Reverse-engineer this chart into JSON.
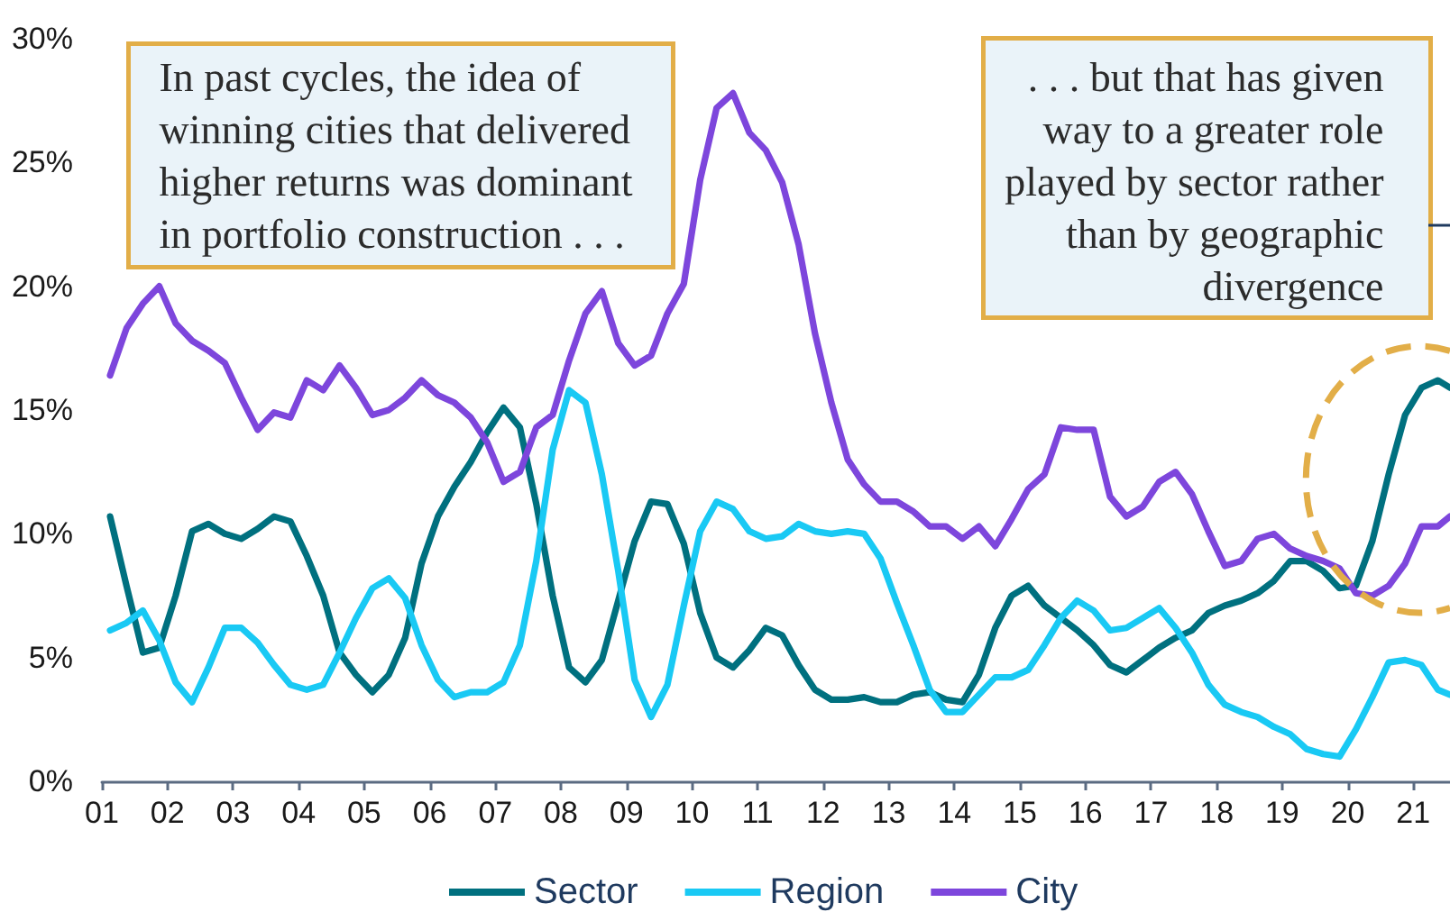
{
  "chart_data": {
    "type": "line",
    "annotations": [
      "In past cycles, the idea of\nwinning cities that delivered\nhigher returns was dominant\nin portfolio construction . . .",
      ". . . but that has given\nway to a greater role\nplayed by sector rather\nthan by geographic\ndivergence"
    ],
    "x": [
      2001.125,
      2001.375,
      2001.625,
      2001.875,
      2002.125,
      2002.375,
      2002.625,
      2002.875,
      2003.125,
      2003.375,
      2003.625,
      2003.875,
      2004.125,
      2004.375,
      2004.625,
      2004.875,
      2005.125,
      2005.375,
      2005.625,
      2005.875,
      2006.125,
      2006.375,
      2006.625,
      2006.875,
      2007.125,
      2007.375,
      2007.625,
      2007.875,
      2008.125,
      2008.375,
      2008.625,
      2008.875,
      2009.125,
      2009.375,
      2009.625,
      2009.875,
      2010.125,
      2010.375,
      2010.625,
      2010.875,
      2011.125,
      2011.375,
      2011.625,
      2011.875,
      2012.125,
      2012.375,
      2012.625,
      2012.875,
      2013.125,
      2013.375,
      2013.625,
      2013.875,
      2014.125,
      2014.375,
      2014.625,
      2014.875,
      2015.125,
      2015.375,
      2015.625,
      2015.875,
      2016.125,
      2016.375,
      2016.625,
      2016.875,
      2017.125,
      2017.375,
      2017.625,
      2017.875,
      2018.125,
      2018.375,
      2018.625,
      2018.875,
      2019.125,
      2019.375,
      2019.625,
      2019.875,
      2020.125,
      2020.375,
      2020.625,
      2020.875,
      2021.125,
      2021.375,
      2021.56
    ],
    "series": [
      {
        "name": "Sector",
        "color": "#00707f",
        "values": [
          10.7,
          7.9,
          5.2,
          5.4,
          7.5,
          10.1,
          10.4,
          10.0,
          9.8,
          10.2,
          10.7,
          10.5,
          9.1,
          7.5,
          5.2,
          4.3,
          3.6,
          4.3,
          5.8,
          8.8,
          10.7,
          11.9,
          12.9,
          14.1,
          15.1,
          14.3,
          11.2,
          7.5,
          4.6,
          4.0,
          4.9,
          7.3,
          9.7,
          11.3,
          11.2,
          9.6,
          6.8,
          5.0,
          4.6,
          5.3,
          6.2,
          5.9,
          4.7,
          3.7,
          3.3,
          3.3,
          3.4,
          3.2,
          3.2,
          3.5,
          3.6,
          3.3,
          3.2,
          4.3,
          6.2,
          7.5,
          7.9,
          7.1,
          6.6,
          6.1,
          5.5,
          4.7,
          4.4,
          4.9,
          5.4,
          5.8,
          6.1,
          6.8,
          7.1,
          7.3,
          7.6,
          8.1,
          8.9,
          8.9,
          8.5,
          7.8,
          7.9,
          9.7,
          12.4,
          14.8,
          15.9,
          16.2,
          15.9
        ]
      },
      {
        "name": "Region",
        "color": "#19c9f4",
        "values": [
          6.1,
          6.4,
          6.9,
          5.7,
          4.0,
          3.2,
          4.6,
          6.2,
          6.2,
          5.6,
          4.7,
          3.9,
          3.7,
          3.9,
          5.2,
          6.6,
          7.8,
          8.2,
          7.4,
          5.5,
          4.1,
          3.4,
          3.6,
          3.6,
          4.0,
          5.5,
          8.9,
          13.4,
          15.8,
          15.3,
          12.4,
          8.5,
          4.1,
          2.6,
          3.9,
          7.1,
          10.1,
          11.3,
          11.0,
          10.1,
          9.8,
          9.9,
          10.4,
          10.1,
          10.0,
          10.1,
          10.0,
          9.0,
          7.2,
          5.5,
          3.7,
          2.8,
          2.8,
          3.5,
          4.2,
          4.2,
          4.5,
          5.5,
          6.6,
          7.3,
          6.9,
          6.1,
          6.2,
          6.6,
          7.0,
          6.2,
          5.2,
          3.9,
          3.1,
          2.8,
          2.6,
          2.2,
          1.9,
          1.3,
          1.1,
          1.0,
          2.1,
          3.4,
          4.8,
          4.9,
          4.7,
          3.7,
          3.5
        ]
      },
      {
        "name": "City",
        "color": "#7d46dc",
        "values": [
          16.4,
          18.3,
          19.3,
          20.0,
          18.5,
          17.8,
          17.4,
          16.9,
          15.5,
          14.2,
          14.9,
          14.7,
          16.2,
          15.8,
          16.8,
          15.9,
          14.8,
          15.0,
          15.5,
          16.2,
          15.6,
          15.3,
          14.7,
          13.7,
          12.1,
          12.5,
          14.3,
          14.8,
          17.0,
          18.9,
          19.8,
          17.7,
          16.8,
          17.2,
          18.9,
          20.1,
          24.3,
          27.2,
          27.8,
          26.2,
          25.5,
          24.2,
          21.7,
          18.1,
          15.3,
          13.0,
          12.0,
          11.3,
          11.3,
          10.9,
          10.3,
          10.3,
          9.8,
          10.3,
          9.5,
          10.6,
          11.8,
          12.4,
          14.3,
          14.2,
          14.2,
          11.5,
          10.7,
          11.1,
          12.1,
          12.5,
          11.6,
          10.1,
          8.7,
          8.9,
          9.8,
          10.0,
          9.4,
          9.1,
          8.9,
          8.6,
          7.6,
          7.5,
          7.9,
          8.8,
          10.3,
          10.3,
          10.7
        ]
      }
    ],
    "xlim": [
      2001,
      2021.56
    ],
    "xticks": [
      {
        "value": 2001,
        "label": "01"
      },
      {
        "value": 2002,
        "label": "02"
      },
      {
        "value": 2003,
        "label": "03"
      },
      {
        "value": 2004,
        "label": "04"
      },
      {
        "value": 2005,
        "label": "05"
      },
      {
        "value": 2006,
        "label": "06"
      },
      {
        "value": 2007,
        "label": "07"
      },
      {
        "value": 2008,
        "label": "08"
      },
      {
        "value": 2009,
        "label": "09"
      },
      {
        "value": 2010,
        "label": "10"
      },
      {
        "value": 2011,
        "label": "11"
      },
      {
        "value": 2012,
        "label": "12"
      },
      {
        "value": 2013,
        "label": "13"
      },
      {
        "value": 2014,
        "label": "14"
      },
      {
        "value": 2015,
        "label": "15"
      },
      {
        "value": 2016,
        "label": "16"
      },
      {
        "value": 2017,
        "label": "17"
      },
      {
        "value": 2018,
        "label": "18"
      },
      {
        "value": 2019,
        "label": "19"
      },
      {
        "value": 2020,
        "label": "20"
      },
      {
        "value": 2021,
        "label": "21"
      }
    ],
    "ylim": [
      0,
      30
    ],
    "yticks": [
      {
        "value": 0,
        "label": "0%"
      },
      {
        "value": 5,
        "label": "5%"
      },
      {
        "value": 10,
        "label": "10%"
      },
      {
        "value": 15,
        "label": "15%"
      },
      {
        "value": 20,
        "label": "20%"
      },
      {
        "value": 25,
        "label": "25%"
      },
      {
        "value": 30,
        "label": "30%"
      }
    ],
    "grid": false,
    "legend": "bottom"
  }
}
